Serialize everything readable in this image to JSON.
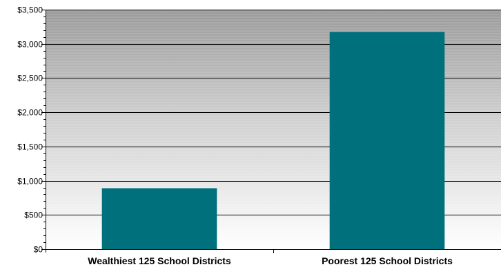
{
  "chart_data": {
    "type": "bar",
    "title": "",
    "xlabel": "",
    "ylabel": "",
    "categories": [
      "Wealthiest 125 School Districts",
      "Poorest 125 School Districts"
    ],
    "values": [
      890,
      3175
    ],
    "ylim": [
      0,
      3500
    ],
    "y_ticks": [
      0,
      500,
      1000,
      1500,
      2000,
      2500,
      3000,
      3500
    ],
    "y_tick_labels": [
      "$0",
      "$500",
      "$1,000",
      "$1,500",
      "$2,000",
      "$2,500",
      "$3,000",
      "$3,500"
    ],
    "bar_color": "#00707c",
    "grid": true,
    "legend": "none",
    "background": "vertical gradient, gray at top to white at bottom"
  }
}
